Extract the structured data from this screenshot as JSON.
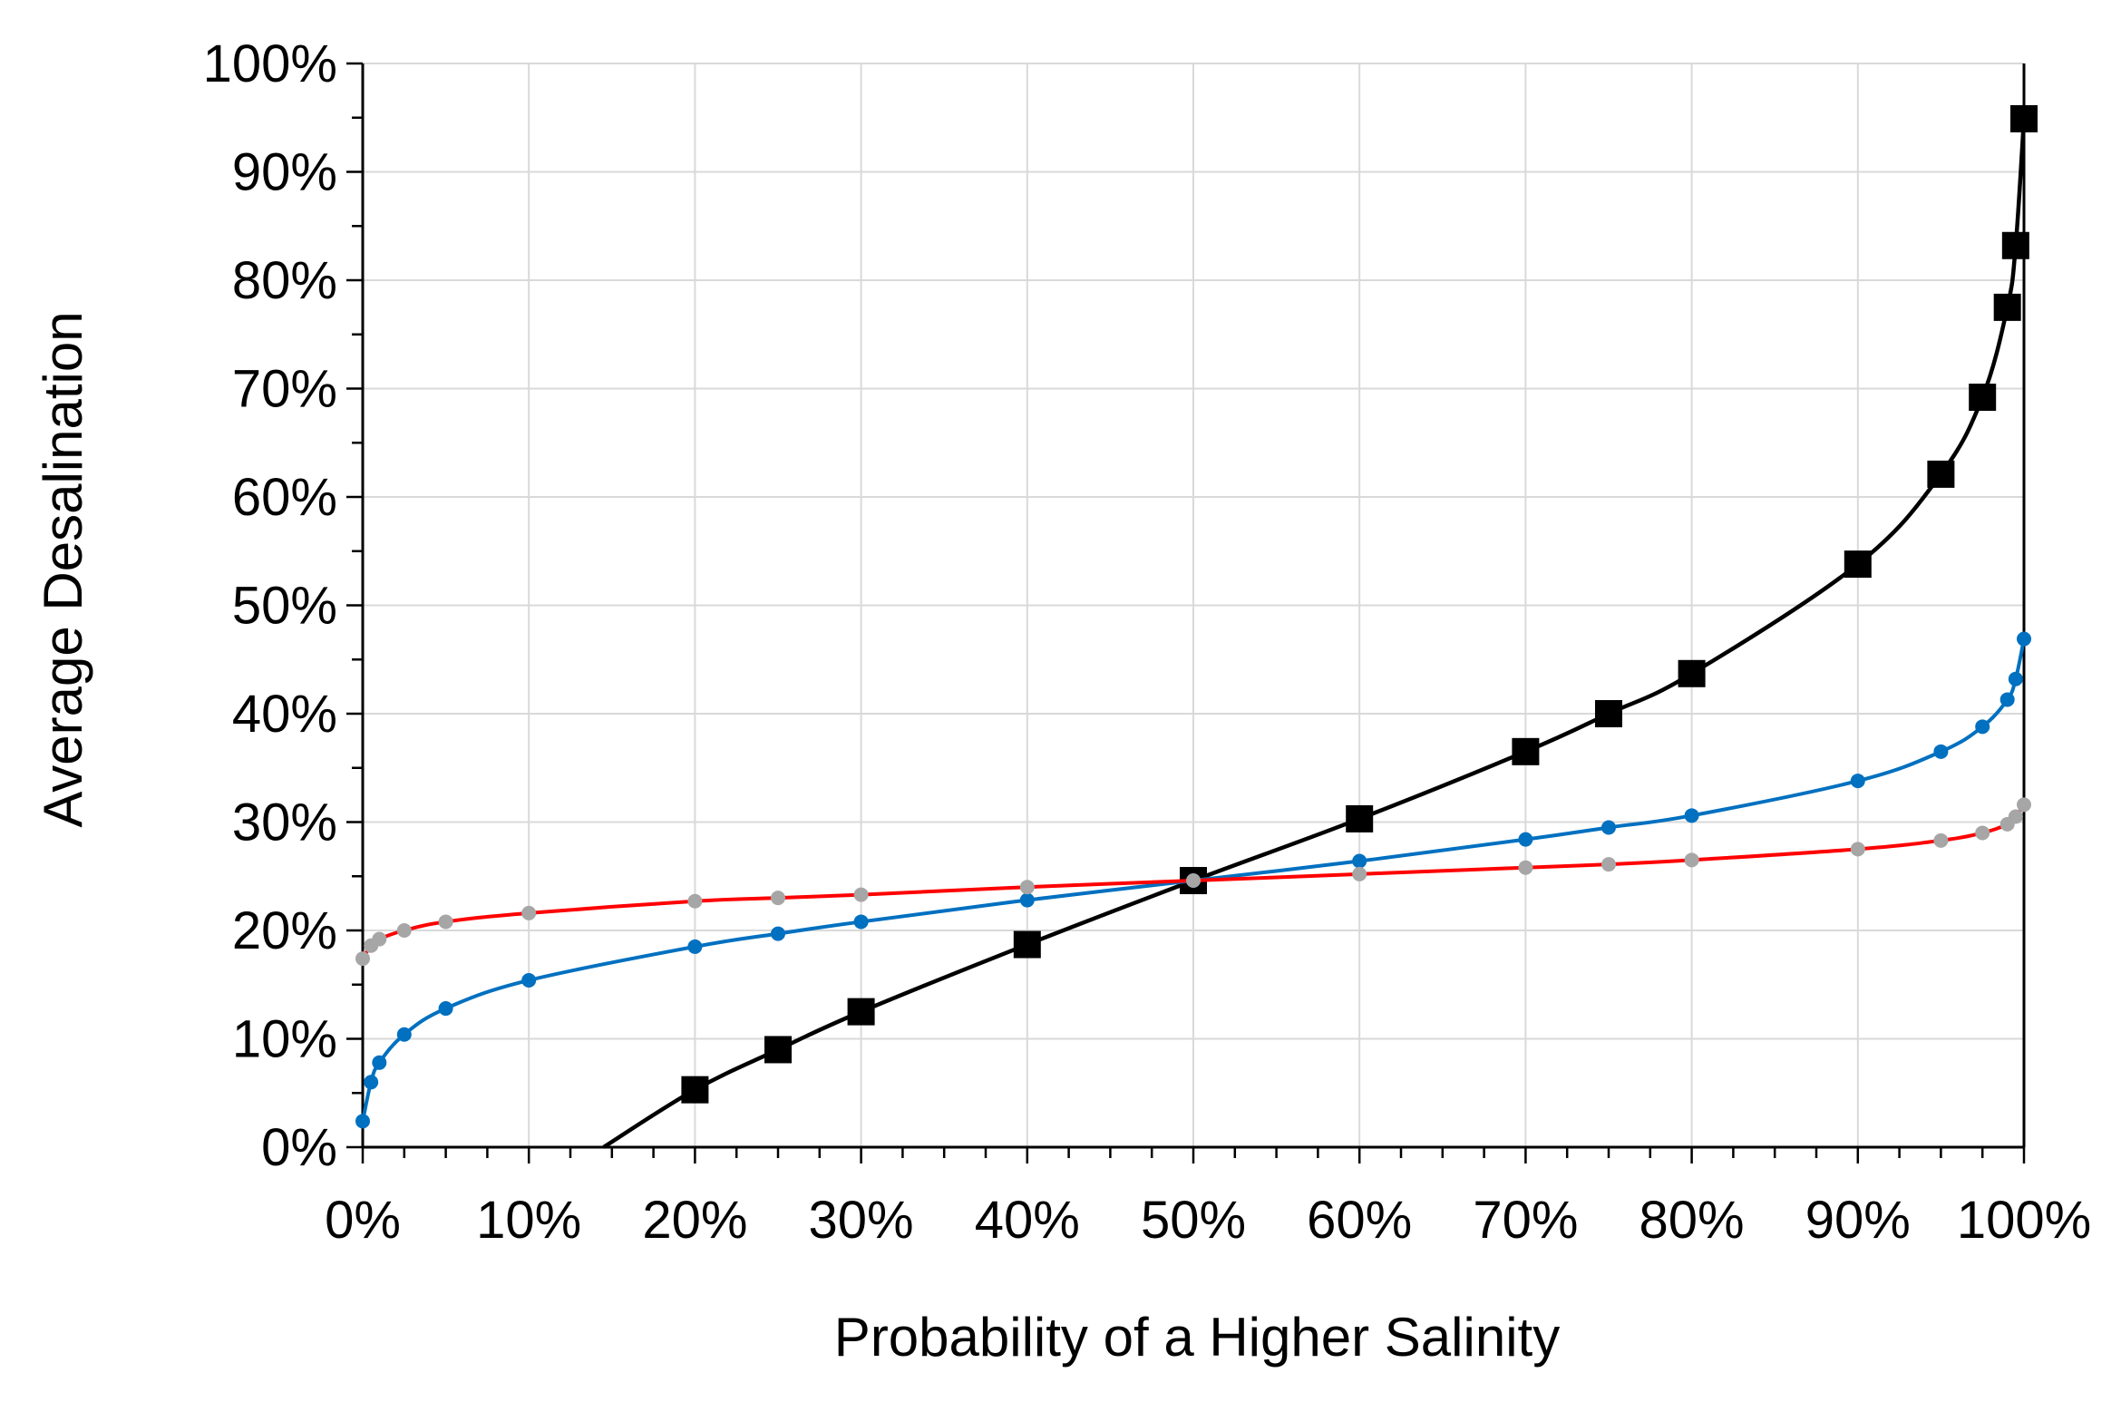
{
  "chart_data": {
    "type": "line",
    "title": "",
    "xlabel": "Probability of a Higher Salinity",
    "ylabel": "Average Desalination",
    "xlim": [
      0,
      100
    ],
    "ylim": [
      0,
      100
    ],
    "x_ticks": [
      "0%",
      "10%",
      "20%",
      "30%",
      "40%",
      "50%",
      "60%",
      "70%",
      "80%",
      "90%",
      "100%"
    ],
    "y_ticks": [
      "0%",
      "10%",
      "20%",
      "30%",
      "40%",
      "50%",
      "60%",
      "70%",
      "80%",
      "90%",
      "100%"
    ],
    "grid": true,
    "legend": "none",
    "series": [
      {
        "color": "#ff0000",
        "marker_color": "#a6a6a6",
        "marker": "circle",
        "x": [
          0,
          0.5,
          1,
          2.5,
          5,
          10,
          20,
          25,
          30,
          40,
          50,
          60,
          70,
          75,
          80,
          90,
          95,
          97.5,
          99,
          99.5,
          100
        ],
        "y": [
          17.4,
          18.6,
          19.2,
          20.0,
          20.8,
          21.6,
          22.7,
          23.0,
          23.3,
          24.0,
          24.6,
          25.2,
          25.8,
          26.1,
          26.5,
          27.5,
          28.3,
          29.0,
          29.8,
          30.5,
          31.6
        ]
      },
      {
        "color": "#0070c0",
        "marker_color": "#0070c0",
        "marker": "circle",
        "x": [
          0,
          0.5,
          1,
          2.5,
          5,
          10,
          20,
          25,
          30,
          40,
          50,
          60,
          70,
          75,
          80,
          90,
          95,
          97.5,
          99,
          99.5,
          100
        ],
        "y": [
          2.4,
          6.0,
          7.8,
          10.4,
          12.8,
          15.4,
          18.5,
          19.7,
          20.8,
          22.8,
          24.6,
          26.4,
          28.4,
          29.5,
          30.6,
          33.8,
          36.5,
          38.8,
          41.3,
          43.2,
          46.9
        ]
      },
      {
        "color": "#000000",
        "marker_color": "#000000",
        "marker": "square",
        "x": [
          14.5,
          20,
          25,
          30,
          40,
          50,
          60,
          70,
          75,
          80,
          90,
          95,
          97.5,
          99,
          99.5,
          100
        ],
        "y": [
          0,
          5.3,
          9.0,
          12.5,
          18.7,
          24.6,
          30.3,
          36.5,
          40.0,
          43.7,
          53.8,
          62.1,
          69.2,
          77.5,
          83.2,
          94.9
        ],
        "markers_from_index": 1
      }
    ]
  }
}
